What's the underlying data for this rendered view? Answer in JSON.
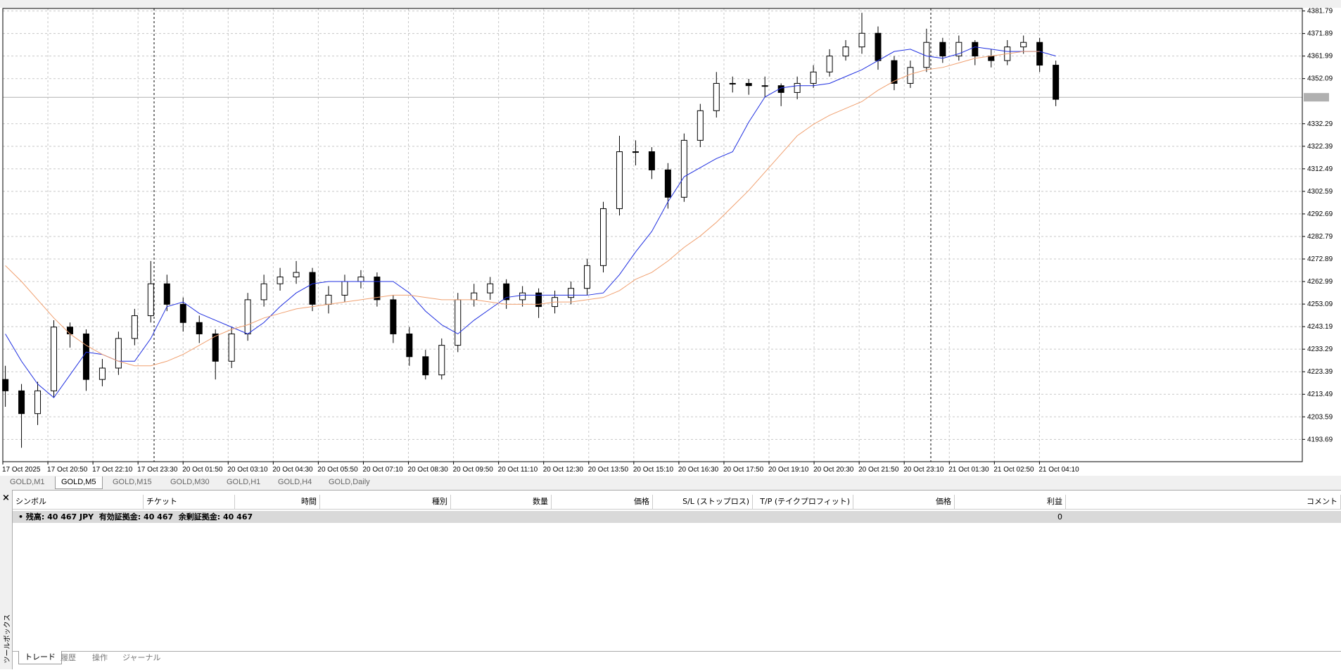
{
  "chart_data": {
    "type": "candlestick",
    "ylim": [
      4183.9,
      4382.9
    ],
    "yticks": [
      4381.79,
      4371.89,
      4361.99,
      4352.09,
      4332.29,
      4322.39,
      4312.49,
      4302.59,
      4292.69,
      4282.79,
      4272.89,
      4262.99,
      4253.09,
      4243.19,
      4233.29,
      4223.39,
      4213.49,
      4203.59,
      4193.69
    ],
    "grid": true,
    "color": "#000000",
    "up_color": "#ffffff",
    "price_line": 4343.9,
    "price_line_color": "#b0b0b0",
    "x_labels": [
      "17 Oct 2025",
      "17 Oct 20:50",
      "17 Oct 22:10",
      "17 Oct 23:30",
      "20 Oct 01:50",
      "20 Oct 03:10",
      "20 Oct 04:30",
      "20 Oct 05:50",
      "20 Oct 07:10",
      "20 Oct 08:30",
      "20 Oct 09:50",
      "20 Oct 11:10",
      "20 Oct 12:30",
      "20 Oct 13:50",
      "20 Oct 15:10",
      "20 Oct 16:30",
      "20 Oct 17:50",
      "20 Oct 19:10",
      "20 Oct 20:30",
      "20 Oct 21:50",
      "20 Oct 23:10",
      "21 Oct 01:30",
      "21 Oct 02:50",
      "21 Oct 04:10"
    ],
    "open": [
      4220,
      4215,
      4205,
      4215,
      4243,
      4240,
      4220,
      4225,
      4238,
      4248,
      4262,
      4253,
      4245,
      4240,
      4228,
      4240,
      4255,
      4262,
      4265,
      4267,
      4253,
      4257,
      4263,
      4265,
      4255,
      4240,
      4230,
      4222,
      4235,
      4255,
      4258,
      4262,
      4255,
      4258,
      4252,
      4256,
      4260,
      4270,
      4295,
      4320,
      4320,
      4312,
      4300,
      4325,
      4338,
      4350,
      4350,
      4349,
      4349,
      4346,
      4350,
      4355,
      4362,
      4366,
      4372,
      4360,
      4350,
      4357,
      4368,
      4362,
      4368,
      4362,
      4360,
      4366,
      4368,
      4358
    ],
    "high": [
      4226,
      4218,
      4219,
      4246,
      4245,
      4242,
      4229,
      4241,
      4251,
      4272,
      4266,
      4256,
      4248,
      4242,
      4243,
      4258,
      4266,
      4269,
      4272,
      4269,
      4261,
      4266,
      4268,
      4267,
      4257,
      4243,
      4233,
      4238,
      4258,
      4262,
      4265,
      4264,
      4261,
      4260,
      4259,
      4263,
      4273,
      4298,
      4327,
      4325,
      4322,
      4315,
      4328,
      4341,
      4355,
      4353,
      4352,
      4353,
      4350,
      4353,
      4358,
      4365,
      4369,
      4381,
      4375,
      4362,
      4360,
      4374,
      4370,
      4371,
      4369,
      4365,
      4369,
      4371,
      4370,
      4360
    ],
    "low": [
      4208,
      4190,
      4200,
      4212,
      4234,
      4215,
      4217,
      4222,
      4235,
      4245,
      4250,
      4241,
      4236,
      4220,
      4225,
      4237,
      4252,
      4259,
      4262,
      4250,
      4249,
      4254,
      4260,
      4252,
      4236,
      4226,
      4220,
      4220,
      4232,
      4252,
      4255,
      4251,
      4252,
      4247,
      4249,
      4253,
      4257,
      4267,
      4292,
      4314,
      4308,
      4295,
      4298,
      4322,
      4335,
      4346,
      4345,
      4344,
      4340,
      4343,
      4348,
      4353,
      4360,
      4363,
      4356,
      4347,
      4348,
      4355,
      4359,
      4360,
      4358,
      4357,
      4358,
      4363,
      4355,
      4340
    ],
    "close": [
      4215,
      4205,
      4215,
      4243,
      4240,
      4220,
      4225,
      4238,
      4248,
      4262,
      4253,
      4245,
      4240,
      4228,
      4240,
      4255,
      4262,
      4265,
      4267,
      4253,
      4257,
      4263,
      4265,
      4255,
      4240,
      4230,
      4222,
      4235,
      4255,
      4258,
      4262,
      4255,
      4258,
      4252,
      4256,
      4260,
      4270,
      4295,
      4320,
      4320,
      4312,
      4300,
      4325,
      4338,
      4350,
      4350,
      4349,
      4349,
      4346,
      4350,
      4355,
      4362,
      4366,
      4372,
      4360,
      4350,
      4357,
      4368,
      4362,
      4368,
      4362,
      4360,
      4366,
      4368,
      4358,
      4343
    ],
    "overlays": [
      {
        "color": "#1f2fe0",
        "values": [
          4240,
          4228,
          4218,
          4212,
          4222,
          4232,
          4231,
          4228,
          4228,
          4238,
          4252,
          4254,
          4249,
          4246,
          4243,
          4240,
          4245,
          4252,
          4258,
          4262,
          4263,
          4263,
          4263,
          4263,
          4263,
          4258,
          4250,
          4244,
          4240,
          4246,
          4251,
          4256,
          4257,
          4257,
          4257,
          4257,
          4257,
          4258,
          4266,
          4276,
          4285,
          4298,
          4309,
          4313,
          4317,
          4320,
          4333,
          4344,
          4348,
          4349,
          4349,
          4350,
          4353,
          4356,
          4360,
          4364,
          4365,
          4362,
          4361,
          4363,
          4366,
          4365,
          4364,
          4364,
          4364,
          4362
        ]
      },
      {
        "color": "#f0a070",
        "values": [
          4270,
          4263,
          4255,
          4247,
          4240,
          4235,
          4231,
          4228,
          4226,
          4226,
          4228,
          4231,
          4235,
          4239,
          4242,
          4244,
          4247,
          4249,
          4251,
          4252,
          4253,
          4254,
          4255,
          4256,
          4257,
          4257,
          4256,
          4255,
          4255,
          4255,
          4254,
          4253,
          4253,
          4253,
          4254,
          4254,
          4255,
          4256,
          4259,
          4264,
          4267,
          4272,
          4278,
          4283,
          4289,
          4296,
          4303,
          4311,
          4319,
          4327,
          4332,
          4336,
          4339,
          4342,
          4347,
          4351,
          4354,
          4356,
          4357,
          4359,
          4361,
          4362,
          4363,
          4364,
          4364,
          null
        ]
      }
    ]
  },
  "symbol_tabs": [
    "GOLD,M1",
    "GOLD,M5",
    "GOLD,M15",
    "GOLD,M30",
    "GOLD,H1",
    "GOLD,H4",
    "GOLD,Daily"
  ],
  "active_tab": 1,
  "orders_table": {
    "columns": [
      "シンボル",
      "チケット",
      "時間",
      "種別",
      "数量",
      "価格",
      "S/L (ストップロス)",
      "T/P (テイクプロフィット)",
      "価格",
      "利益",
      "コメント"
    ],
    "account_row": {
      "text": "残高: 40 467 JPY  有効証拠金: 40 467  余剰証拠金: 40 467",
      "profit": 0
    }
  },
  "toolbox_title": "ツールボックス",
  "toolbox_tabs": [
    "トレード",
    "履歴",
    "操作",
    "ジャーナル"
  ]
}
